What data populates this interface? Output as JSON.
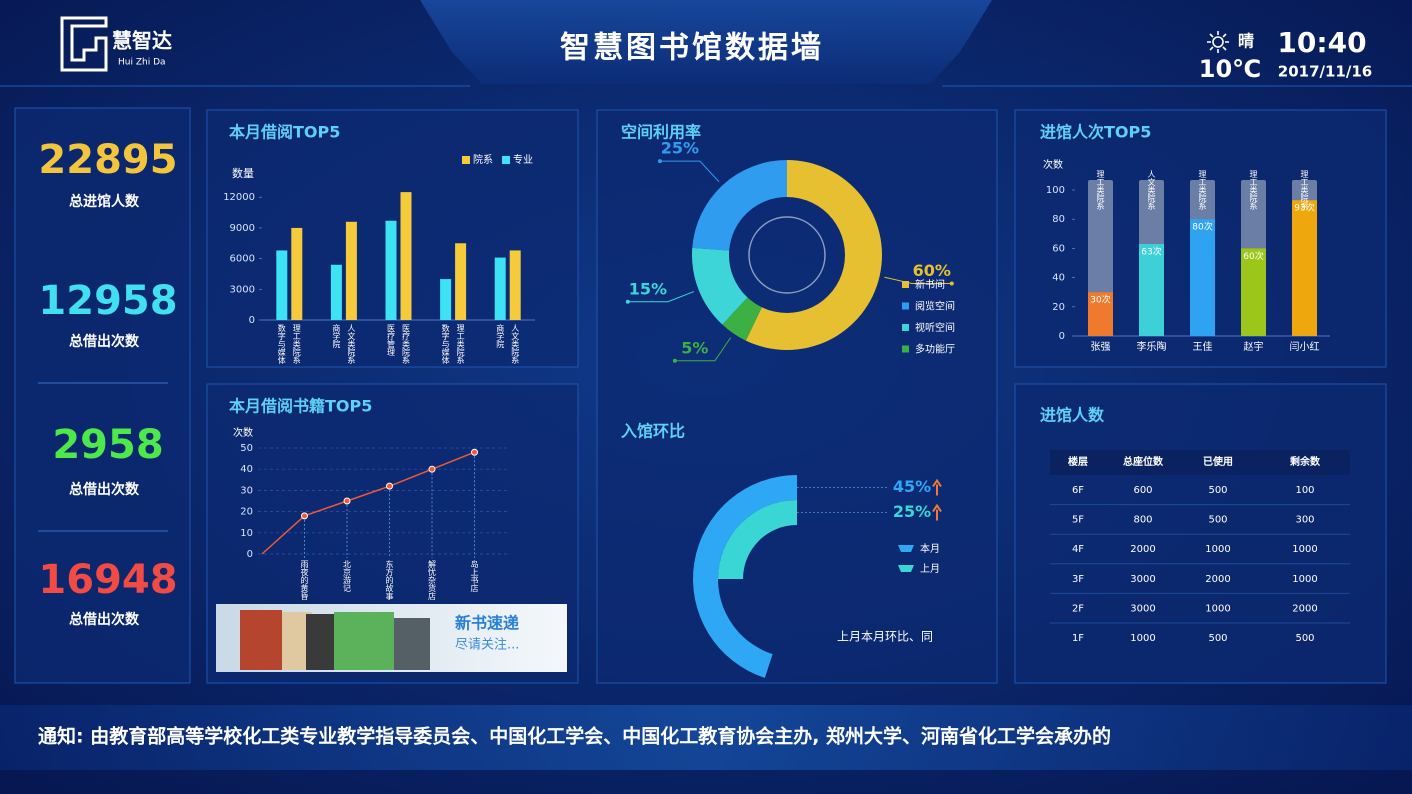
{
  "header": {
    "logo": {
      "name": "慧智达",
      "pinyin": "Hui Zhi Da"
    },
    "title": "智慧图书馆数据墙",
    "weather": {
      "condition": "晴",
      "temperature": "10℃"
    },
    "time": "10:40",
    "date": "2017/11/16"
  },
  "stats": [
    {
      "value": 22895,
      "label": "总进馆人数",
      "color": "#f2c53d"
    },
    {
      "value": 12958,
      "label": "总借出次数",
      "color": "#41e0f0"
    },
    {
      "value": 2958,
      "label": "总借出次数",
      "color": "#4de84a"
    },
    {
      "value": 16948,
      "label": "总借出次数",
      "color": "#f24a45"
    }
  ],
  "borrow_top5": {
    "type": "bar",
    "title": "本月借阅TOP5",
    "y_label": "数量",
    "ylim": [
      0,
      13000
    ],
    "yticks": [
      0,
      3000,
      6000,
      9000,
      12000
    ],
    "series": [
      {
        "name": "专业",
        "color": "#3de3f2",
        "labels": [
          "数字与媒体",
          "商学院",
          "医疗管理",
          "数字与媒体",
          "商学院"
        ],
        "values": [
          6800,
          5400,
          9700,
          4000,
          6100
        ]
      },
      {
        "name": "院系",
        "color": "#f5cb3c",
        "labels": [
          "理工类院系",
          "人文类院系",
          "医疗类院系",
          "理工类院系",
          "人文类院系"
        ],
        "values": [
          9000,
          9600,
          12500,
          7500,
          6800
        ]
      }
    ]
  },
  "space_usage": {
    "type": "donut",
    "title": "空间利用率",
    "categories": [
      "新书间",
      "阅览空间",
      "视听空间",
      "多功能厅"
    ],
    "values": [
      60,
      25,
      15,
      5
    ],
    "value_labels": [
      "60%",
      "25%",
      "15%",
      "5%"
    ],
    "colors": [
      "#e6c030",
      "#2f9cf0",
      "#3dd5d8",
      "#3cb043"
    ]
  },
  "visitors_top5": {
    "type": "bar",
    "title": "进馆人次TOP5",
    "y_label": "次数",
    "ylim": [
      0,
      100
    ],
    "yticks": [
      0,
      20,
      40,
      60,
      80,
      100
    ],
    "categories": [
      "张强",
      "李乐陶",
      "王佳",
      "赵宇",
      "闫小红"
    ],
    "group_labels": [
      "理工类院系",
      "人文类院系",
      "理工类院系",
      "理工类院系",
      "理工类院系"
    ],
    "values": [
      30,
      63,
      80,
      60,
      93
    ],
    "value_labels": [
      "30次",
      "63次",
      "80次",
      "60次",
      "93次"
    ],
    "colors": [
      "#ef7a2e",
      "#3dd0d6",
      "#2ea3f2",
      "#9dc61a",
      "#efa70e"
    ],
    "background_color": "#6a7ea6"
  },
  "books_top5": {
    "type": "line",
    "title": "本月借阅书籍TOP5",
    "y_label": "次数",
    "ylim": [
      0,
      50
    ],
    "yticks": [
      0,
      10,
      20,
      30,
      40,
      50
    ],
    "categories": [
      null,
      "雨夜的黄昏",
      "北京游记",
      "东方的故事",
      "解忧杂货店",
      "岛上书店"
    ],
    "values": [
      0,
      18,
      25,
      32,
      40,
      48
    ],
    "color": "#f0583a",
    "grid": true
  },
  "banner": {
    "title": "新书速递",
    "subtitle": "尽请关注..."
  },
  "ratio": {
    "type": "arc",
    "title": "入馆环比",
    "series": [
      {
        "name": "本月",
        "value": 45,
        "value_label": "45%",
        "color": "#2ea8f5"
      },
      {
        "name": "上月",
        "value": 25,
        "value_label": "25%",
        "color": "#3ad6d6"
      }
    ],
    "caption": "上月本月环比、同"
  },
  "floor_table": {
    "title": "进馆人数",
    "columns": [
      "楼层",
      "总座位数",
      "已使用",
      "剩余数"
    ],
    "rows": [
      [
        "6F",
        600,
        500,
        100
      ],
      [
        "5F",
        800,
        500,
        300
      ],
      [
        "4F",
        2000,
        1000,
        1000
      ],
      [
        "3F",
        3000,
        2000,
        1000
      ],
      [
        "2F",
        3000,
        1000,
        2000
      ],
      [
        "1F",
        1000,
        500,
        500
      ]
    ]
  },
  "notice": "通知: 由教育部高等学校化工类专业教学指导委员会、中国化工学会、中国化工教育协会主办, 郑州大学、河南省化工学会承办的"
}
